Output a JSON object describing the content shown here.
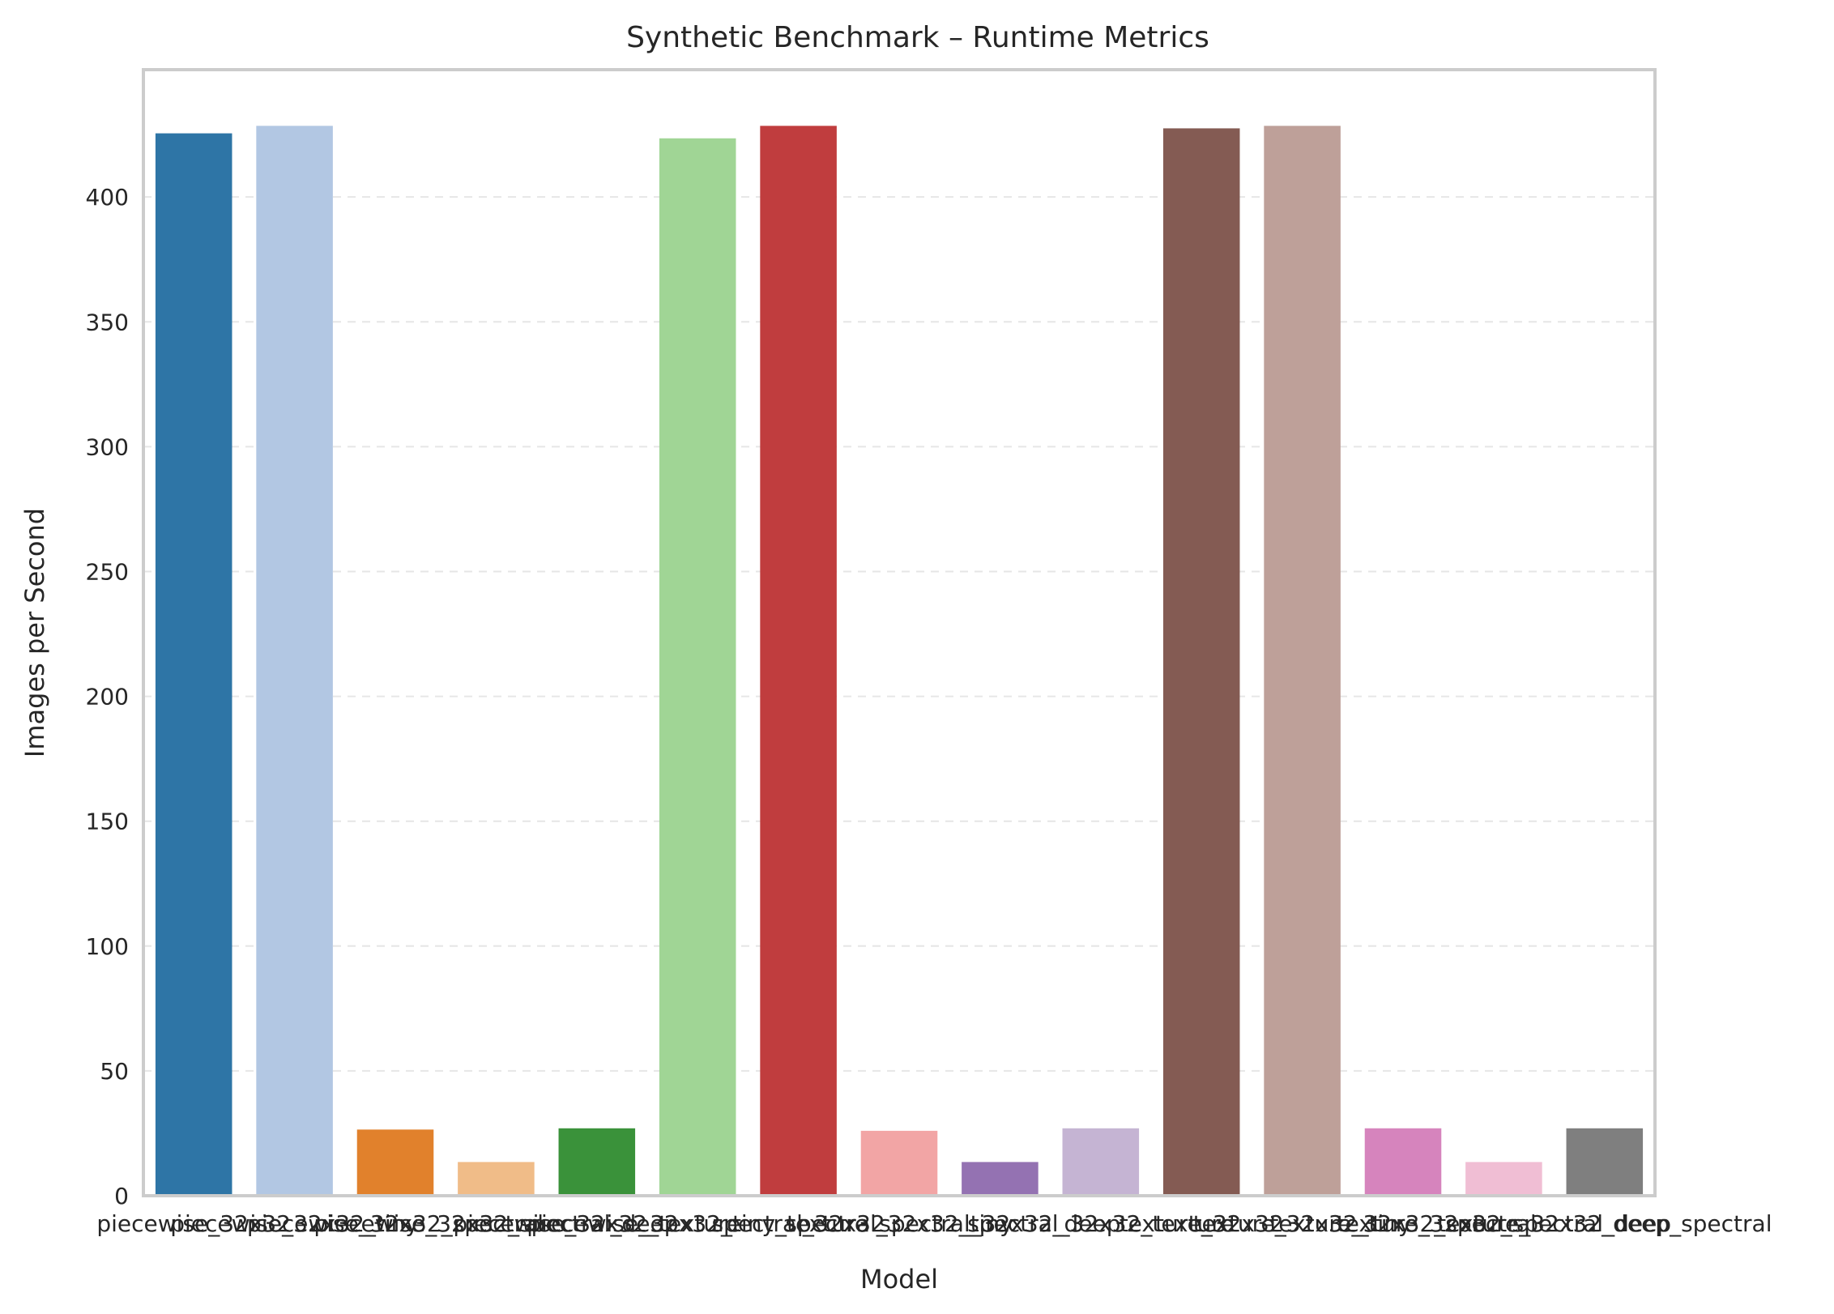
{
  "chart_data": {
    "type": "bar",
    "title": "Synthetic Benchmark – Runtime Metrics",
    "xlabel": "Model",
    "ylabel": "Images per Second",
    "ylim": [
      0,
      451
    ],
    "yticks": [
      0,
      50,
      100,
      150,
      200,
      250,
      300,
      350,
      400
    ],
    "grid": "horizontal-dashed",
    "legend": "none",
    "categories": [
      "piecewise_32x32",
      "piecewise_32x32_tiny",
      "piecewise_32x32_spectral",
      "piecewise_32x32_spectral_deep",
      "piecewise_32x32_texture",
      "piecewise_32x32_tiny_texture",
      "spectral_32x32",
      "spectral_32x32_tiny",
      "spectral_32x32_deep",
      "spectral_32x32_texture",
      "texture_32x32",
      "texture_32x32_tiny",
      "texture_32x32_spectral",
      "texture_32x32_spectral_deep",
      "texture_32x32_deep_spectral"
    ],
    "values": [
      425.5,
      428.5,
      26.5,
      13.5,
      27.0,
      423.5,
      428.5,
      26.0,
      13.5,
      27.0,
      427.5,
      428.5,
      27.0,
      13.5,
      27.0
    ],
    "colors": [
      "#2e75a6",
      "#b2c7e3",
      "#e1812c",
      "#f0bc88",
      "#3a923a",
      "#a0d595",
      "#c03d3e",
      "#f2a5a5",
      "#9472b2",
      "#c5b4d3",
      "#845b53",
      "#bea099",
      "#d684bd",
      "#f0bed4",
      "#7f7f7f"
    ]
  }
}
